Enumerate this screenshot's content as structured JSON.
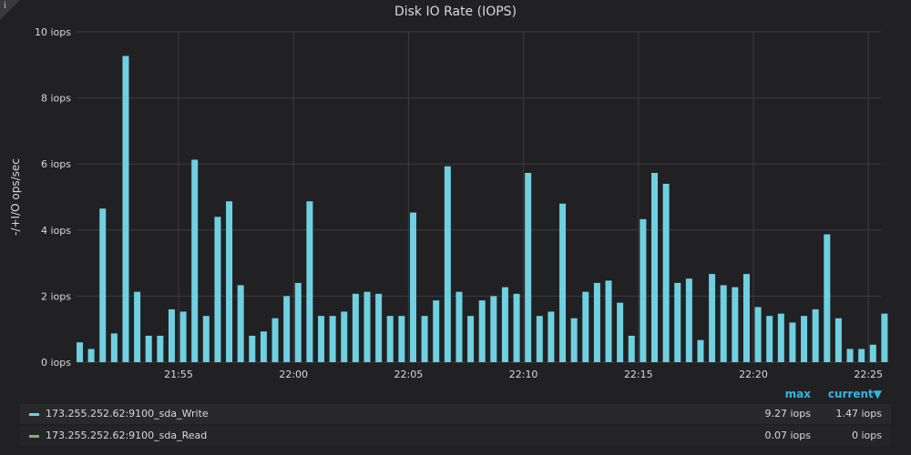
{
  "panel": {
    "title": "Disk IO Rate (IOPS)",
    "corner_glyph": "i"
  },
  "chart_data": {
    "type": "bar",
    "ylabel": "-/+I/O ops/sec",
    "ylim": [
      0,
      10
    ],
    "y_ticks": [
      "0 iops",
      "2 iops",
      "4 iops",
      "6 iops",
      "8 iops",
      "10 iops"
    ],
    "y_tick_values": [
      0,
      2,
      4,
      6,
      8,
      10
    ],
    "x_ticks": [
      "21:55",
      "22:00",
      "22:05",
      "22:10",
      "22:15",
      "22:20",
      "22:25"
    ],
    "grid": true,
    "series": [
      {
        "name": "173.255.252.62:9100_sda_Write",
        "color": "#6ed0e0",
        "values": [
          0.6,
          0.4,
          4.65,
          0.87,
          9.27,
          2.13,
          0.8,
          0.8,
          1.6,
          1.53,
          6.13,
          1.4,
          4.4,
          4.87,
          2.33,
          0.8,
          0.93,
          1.33,
          2.0,
          2.4,
          4.87,
          1.4,
          1.4,
          1.53,
          2.07,
          2.13,
          2.07,
          1.4,
          1.4,
          4.53,
          1.4,
          1.87,
          5.93,
          2.13,
          1.4,
          1.87,
          2.0,
          2.27,
          2.07,
          5.73,
          1.4,
          1.53,
          4.8,
          1.33,
          2.13,
          2.4,
          2.47,
          1.8,
          0.8,
          4.33,
          5.73,
          5.4,
          2.4,
          2.53,
          0.67,
          2.67,
          2.33,
          2.27,
          2.67,
          1.67,
          1.4,
          1.47,
          1.2,
          1.4,
          1.6,
          3.87,
          1.33,
          0.4,
          0.4,
          0.53,
          1.47
        ]
      },
      {
        "name": "173.255.252.62:9100_sda_Read",
        "color": "#7eb26d",
        "values": []
      }
    ]
  },
  "legend": {
    "max_header": "max",
    "current_header": "current",
    "rows": [
      {
        "name": "173.255.252.62:9100_sda_Write",
        "max": "9.27 iops",
        "current": "1.47 iops",
        "color": "#6ed0e0"
      },
      {
        "name": "173.255.252.62:9100_sda_Read",
        "max": "0.07 iops",
        "current": "0 iops",
        "color": "#7eb26d"
      }
    ]
  }
}
